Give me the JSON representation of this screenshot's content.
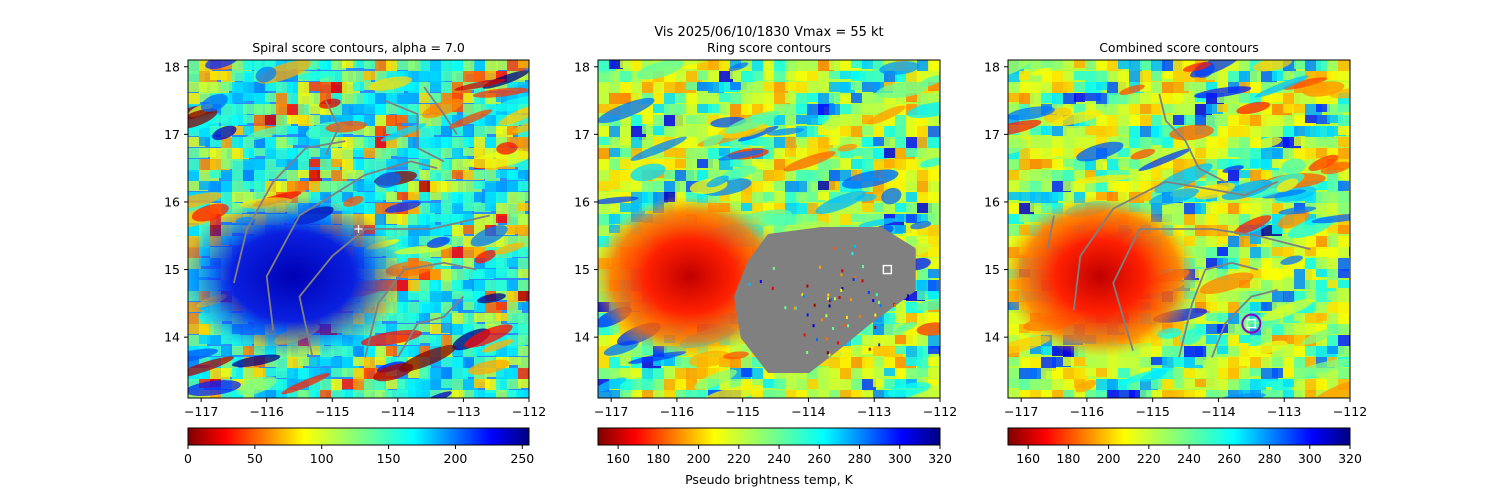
{
  "suptitle": "Vis  2025/06/10/1830    Vmax = 55 kt",
  "colormap": "jet",
  "chart_data": [
    {
      "type": "heatmap",
      "title": "Spiral score contours, alpha =  7.0",
      "xlim": [
        -117.2,
        -112
      ],
      "ylim": [
        13.1,
        18.1
      ],
      "xticks": [
        "−117",
        "−116",
        "−115",
        "−114",
        "−113",
        "−112"
      ],
      "yticks": [
        "14",
        "15",
        "16",
        "17",
        "18"
      ],
      "colorbar": {
        "range": [
          0,
          255
        ],
        "ticks": [
          "0",
          "50",
          "100",
          "150",
          "200",
          "250"
        ],
        "reversed": true,
        "label": ""
      },
      "dark_region": {
        "lon": -115.6,
        "lat": 14.9,
        "rx": 1.7,
        "ry": 1.2
      },
      "center_marker": {
        "shape": "plus",
        "lon": -114.6,
        "lat": 15.6
      },
      "contours": [
        [
          [
            -116.5,
            14.8
          ],
          [
            -116.3,
            15.6
          ],
          [
            -115.9,
            16.3
          ],
          [
            -115.4,
            16.8
          ],
          [
            -114.8,
            16.9
          ]
        ],
        [
          [
            -115.9,
            14.1
          ],
          [
            -116.0,
            14.9
          ],
          [
            -115.5,
            15.8
          ],
          [
            -114.5,
            16.4
          ],
          [
            -113.8,
            16.6
          ],
          [
            -113.4,
            16.5
          ]
        ],
        [
          [
            -115.3,
            13.7
          ],
          [
            -115.5,
            14.6
          ],
          [
            -115.0,
            15.2
          ],
          [
            -114.5,
            15.6
          ],
          [
            -113.5,
            15.6
          ],
          [
            -112.6,
            15.8
          ]
        ],
        [
          [
            -114.5,
            13.7
          ],
          [
            -114.3,
            14.5
          ],
          [
            -113.9,
            15.0
          ],
          [
            -113.3,
            15.1
          ],
          [
            -112.8,
            15.0
          ]
        ],
        [
          [
            -114.0,
            13.7
          ],
          [
            -113.7,
            14.2
          ],
          [
            -113.3,
            14.3
          ],
          [
            -113.0,
            14.6
          ]
        ],
        [
          [
            -115.1,
            17.5
          ],
          [
            -114.9,
            17.1
          ],
          [
            -115.1,
            16.7
          ]
        ],
        [
          [
            -114.2,
            17.5
          ],
          [
            -113.7,
            17.3
          ],
          [
            -113.7,
            16.8
          ],
          [
            -113.3,
            16.6
          ]
        ],
        [
          [
            -113.6,
            17.7
          ],
          [
            -113.3,
            17.3
          ],
          [
            -113.1,
            17.0
          ]
        ]
      ]
    },
    {
      "type": "heatmap",
      "title": "Ring score contours",
      "xlim": [
        -117.2,
        -112
      ],
      "ylim": [
        13.1,
        18.1
      ],
      "xticks": [
        "−117",
        "−116",
        "−115",
        "−114",
        "−113",
        "−112"
      ],
      "yticks": [
        "14",
        "15",
        "16",
        "17",
        "18"
      ],
      "colorbar": {
        "range": [
          150,
          320
        ],
        "ticks": [
          "160",
          "180",
          "200",
          "220",
          "240",
          "260",
          "280",
          "300",
          "320"
        ],
        "reversed": false,
        "label": "Pseudo brightness temp, K"
      },
      "warm_region": {
        "lon": -115.8,
        "lat": 14.9,
        "rx": 1.5,
        "ry": 1.2
      },
      "mask_region": [
        [
          -114.9,
          15.1
        ],
        [
          -114.6,
          15.5
        ],
        [
          -113.8,
          15.6
        ],
        [
          -112.9,
          15.6
        ],
        [
          -112.4,
          15.3
        ],
        [
          -112.4,
          14.7
        ],
        [
          -113.1,
          14.2
        ],
        [
          -113.6,
          13.8
        ],
        [
          -114.0,
          13.5
        ],
        [
          -114.6,
          13.5
        ],
        [
          -115.0,
          14.0
        ],
        [
          -115.1,
          14.6
        ]
      ],
      "center_marker": {
        "shape": "square",
        "lon": -112.8,
        "lat": 15.0
      },
      "contours": []
    },
    {
      "type": "heatmap",
      "title": "Combined score contours",
      "xlim": [
        -117.2,
        -112
      ],
      "ylim": [
        13.1,
        18.1
      ],
      "xticks": [
        "−117",
        "−116",
        "−115",
        "−114",
        "−113",
        "−112"
      ],
      "yticks": [
        "14",
        "15",
        "16",
        "17",
        "18"
      ],
      "colorbar": {
        "range": [
          150,
          320
        ],
        "ticks": [
          "160",
          "180",
          "200",
          "220",
          "240",
          "260",
          "280",
          "300",
          "320"
        ],
        "reversed": false,
        "label": ""
      },
      "warm_region": {
        "lon": -115.8,
        "lat": 14.9,
        "rx": 1.5,
        "ry": 1.2
      },
      "center_marker": {
        "shape": "square",
        "lon": -113.5,
        "lat": 14.2
      },
      "ring_marker": {
        "lon": -113.5,
        "lat": 14.2,
        "radius": 0.15
      },
      "contours": [
        [
          [
            -116.6,
            15.3
          ],
          [
            -116.5,
            15.8
          ]
        ],
        [
          [
            -116.2,
            14.4
          ],
          [
            -116.1,
            15.2
          ],
          [
            -115.6,
            15.9
          ],
          [
            -114.8,
            16.3
          ],
          [
            -114.2,
            16.2
          ],
          [
            -113.6,
            16.1
          ],
          [
            -113.1,
            16.3
          ]
        ],
        [
          [
            -115.3,
            13.8
          ],
          [
            -115.6,
            14.8
          ],
          [
            -115.2,
            15.6
          ],
          [
            -114.6,
            15.6
          ],
          [
            -114.1,
            15.6
          ],
          [
            -113.4,
            15.5
          ],
          [
            -112.6,
            15.3
          ]
        ],
        [
          [
            -114.6,
            13.7
          ],
          [
            -114.4,
            14.5
          ],
          [
            -114.2,
            15.0
          ],
          [
            -113.8,
            15.1
          ],
          [
            -113.4,
            15.0
          ]
        ],
        [
          [
            -114.1,
            13.7
          ],
          [
            -113.9,
            14.2
          ],
          [
            -113.5,
            14.6
          ],
          [
            -113.1,
            14.7
          ]
        ],
        [
          [
            -114.9,
            17.6
          ],
          [
            -114.8,
            17.2
          ],
          [
            -114.5,
            16.9
          ],
          [
            -114.3,
            16.5
          ],
          [
            -113.9,
            16.3
          ]
        ]
      ]
    }
  ]
}
